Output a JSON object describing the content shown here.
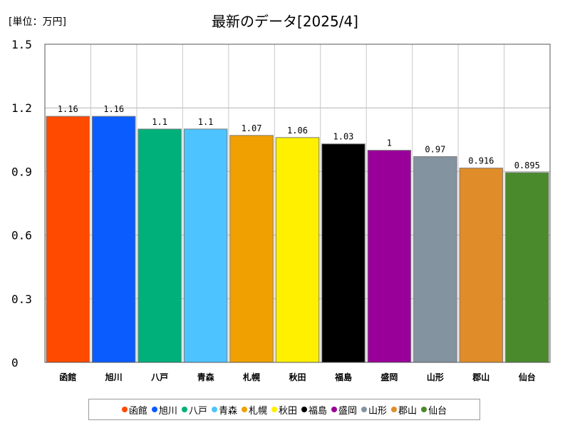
{
  "chart_data": {
    "type": "bar",
    "title": "最新のデータ[2025/4]",
    "unit_label": "[単位：万円]",
    "categories": [
      "函館",
      "旭川",
      "八戸",
      "青森",
      "札幌",
      "秋田",
      "福島",
      "盛岡",
      "山形",
      "郡山",
      "仙台"
    ],
    "values": [
      1.16,
      1.16,
      1.1,
      1.1,
      1.07,
      1.06,
      1.03,
      1,
      0.97,
      0.916,
      0.895
    ],
    "value_labels": [
      "1.16",
      "1.16",
      "1.1",
      "1.1",
      "1.07",
      "1.06",
      "1.03",
      "1",
      "0.97",
      "0.916",
      "0.895"
    ],
    "bar_colors": [
      "#ff4a00",
      "#0a5cff",
      "#00b07a",
      "#4dc3ff",
      "#f0a000",
      "#fff000",
      "#000000",
      "#990099",
      "#8393a0",
      "#e08c28",
      "#4a8a2c"
    ],
    "ylim": [
      0,
      1.5
    ],
    "yticks": [
      "0",
      "0.3",
      "0.6",
      "0.9",
      "1.2",
      "1.5"
    ],
    "ytick_values": [
      0,
      0.3,
      0.6,
      0.9,
      1.2,
      1.5
    ],
    "grid": true,
    "legend_position": "bottom",
    "xlabel": "",
    "ylabel": ""
  }
}
